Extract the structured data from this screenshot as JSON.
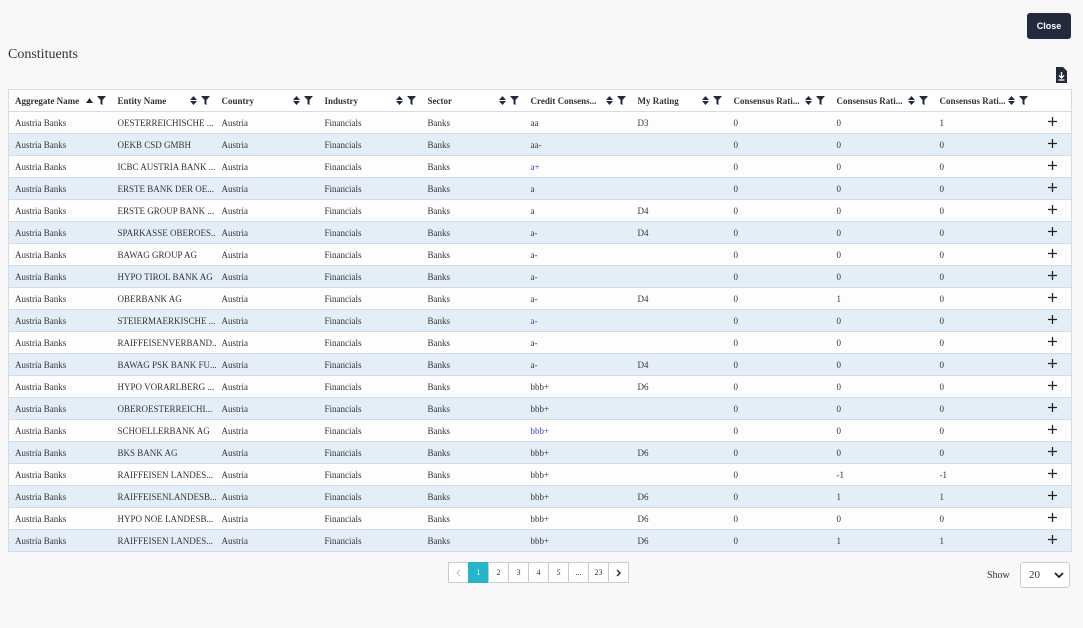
{
  "header": {
    "close_button": "Close",
    "title": "Constituents"
  },
  "table": {
    "columns": [
      "Aggregate Name",
      "Entity Name",
      "Country",
      "Industry",
      "Sector",
      "Credit Consens...",
      "My Rating",
      "Consensus Rati...",
      "Consensus Rati...",
      "Consensus Rati..."
    ],
    "rows": [
      [
        "Austria Banks",
        "OESTERREICHISCHE ...",
        "Austria",
        "Financials",
        "Banks",
        "aa",
        "D3",
        0,
        0,
        1
      ],
      [
        "Austria Banks",
        "OEKB CSD GMBH",
        "Austria",
        "Financials",
        "Banks",
        "aa-",
        null,
        0,
        0,
        0
      ],
      [
        "Austria Banks",
        "ICBC AUSTRIA BANK ...",
        "Austria",
        "Financials",
        "Banks",
        "a+",
        null,
        0,
        0,
        0
      ],
      [
        "Austria Banks",
        "ERSTE BANK DER OE...",
        "Austria",
        "Financials",
        "Banks",
        "a",
        null,
        0,
        0,
        0
      ],
      [
        "Austria Banks",
        "ERSTE GROUP BANK ...",
        "Austria",
        "Financials",
        "Banks",
        "a",
        "D4",
        0,
        0,
        0
      ],
      [
        "Austria Banks",
        "SPARKASSE OBEROES...",
        "Austria",
        "Financials",
        "Banks",
        "a-",
        "D4",
        0,
        0,
        0
      ],
      [
        "Austria Banks",
        "BAWAG GROUP AG",
        "Austria",
        "Financials",
        "Banks",
        "a-",
        null,
        0,
        0,
        0
      ],
      [
        "Austria Banks",
        "HYPO TIROL BANK AG",
        "Austria",
        "Financials",
        "Banks",
        "a-",
        null,
        0,
        0,
        0
      ],
      [
        "Austria Banks",
        "OBERBANK AG",
        "Austria",
        "Financials",
        "Banks",
        "a-",
        "D4",
        0,
        1,
        0
      ],
      [
        "Austria Banks",
        "STEIERMAERKISCHE ...",
        "Austria",
        "Financials",
        "Banks",
        "a-",
        null,
        0,
        0,
        0
      ],
      [
        "Austria Banks",
        "RAIFFEISENVERBAND...",
        "Austria",
        "Financials",
        "Banks",
        "a-",
        null,
        0,
        0,
        0
      ],
      [
        "Austria Banks",
        "BAWAG PSK BANK FU...",
        "Austria",
        "Financials",
        "Banks",
        "a-",
        "D4",
        0,
        0,
        0
      ],
      [
        "Austria Banks",
        "HYPO VORARLBERG ...",
        "Austria",
        "Financials",
        "Banks",
        "bbb+",
        "D6",
        0,
        0,
        0
      ],
      [
        "Austria Banks",
        "OBEROESTERREICHI...",
        "Austria",
        "Financials",
        "Banks",
        "bbb+",
        null,
        0,
        0,
        0
      ],
      [
        "Austria Banks",
        "SCHOELLERBANK AG",
        "Austria",
        "Financials",
        "Banks",
        "bbb+",
        null,
        0,
        0,
        0
      ],
      [
        "Austria Banks",
        "BKS BANK AG",
        "Austria",
        "Financials",
        "Banks",
        "bbb+",
        "D6",
        0,
        0,
        0
      ],
      [
        "Austria Banks",
        "RAIFFEISEN LANDES...",
        "Austria",
        "Financials",
        "Banks",
        "bbb+",
        null,
        0,
        -1,
        -1
      ],
      [
        "Austria Banks",
        "RAIFFEISENLANDESB...",
        "Austria",
        "Financials",
        "Banks",
        "bbb+",
        "D6",
        0,
        1,
        1
      ],
      [
        "Austria Banks",
        "HYPO NOE LANDESB...",
        "Austria",
        "Financials",
        "Banks",
        "bbb+",
        "D6",
        0,
        0,
        0
      ],
      [
        "Austria Banks",
        "RAIFFEISEN LANDES...",
        "Austria",
        "Financials",
        "Banks",
        "bbb+",
        "D6",
        0,
        1,
        1
      ]
    ]
  },
  "pagination": {
    "pages": [
      "1",
      "2",
      "3",
      "4",
      "5",
      "...",
      "23"
    ],
    "show_label": "Show",
    "page_size": "20"
  }
}
